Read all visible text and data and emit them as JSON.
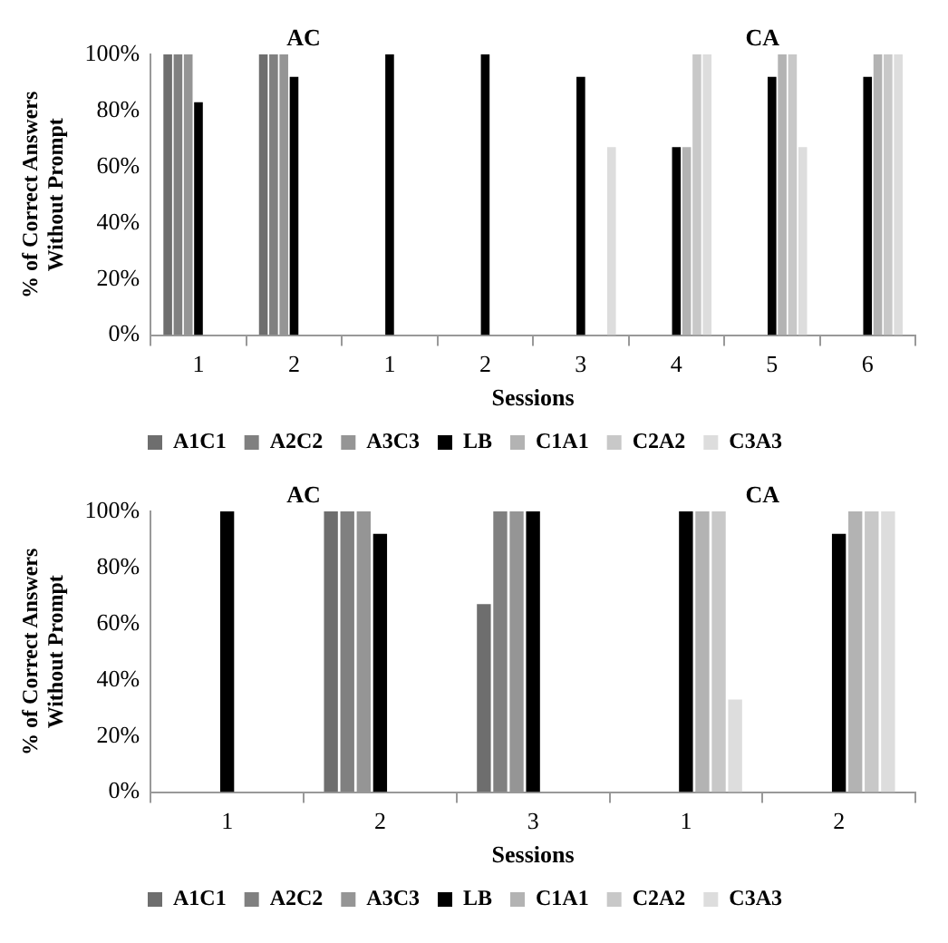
{
  "chart_data": [
    {
      "type": "bar",
      "annotations": [
        "AC",
        "CA"
      ],
      "xlabel": "Sessions",
      "ylabel": "% of Correct Answers Without Prompt",
      "categories": [
        "1",
        "2",
        "1",
        "2",
        "3",
        "4",
        "5",
        "6"
      ],
      "ylim": [
        0,
        100
      ],
      "yticks": [
        {
          "value": 0,
          "label": "0%"
        },
        {
          "value": 20,
          "label": "20%"
        },
        {
          "value": 40,
          "label": "40%"
        },
        {
          "value": 60,
          "label": "60%"
        },
        {
          "value": 80,
          "label": "80%"
        },
        {
          "value": 100,
          "label": "100%"
        }
      ],
      "grid": false,
      "legend": "bottom",
      "series": [
        {
          "name": "A1C1",
          "color": "#6e6e6e",
          "values": [
            100,
            100,
            null,
            null,
            null,
            null,
            null,
            null
          ]
        },
        {
          "name": "A2C2",
          "color": "#808080",
          "values": [
            100,
            100,
            null,
            null,
            null,
            null,
            null,
            null
          ]
        },
        {
          "name": "A3C3",
          "color": "#959595",
          "values": [
            100,
            100,
            null,
            null,
            null,
            null,
            null,
            null
          ]
        },
        {
          "name": "LB",
          "color": "#000000",
          "values": [
            83,
            92,
            100,
            100,
            92,
            67,
            92,
            92
          ]
        },
        {
          "name": "C1A1",
          "color": "#b3b3b3",
          "values": [
            null,
            null,
            null,
            null,
            null,
            67,
            100,
            100
          ]
        },
        {
          "name": "C2A2",
          "color": "#c8c8c8",
          "values": [
            null,
            null,
            null,
            null,
            null,
            100,
            100,
            100
          ]
        },
        {
          "name": "C3A3",
          "color": "#dddddd",
          "values": [
            null,
            null,
            null,
            null,
            67,
            100,
            67,
            100
          ]
        }
      ]
    },
    {
      "type": "bar",
      "annotations": [
        "AC",
        "CA"
      ],
      "xlabel": "Sessions",
      "ylabel": "% of Correct Answers Without Prompt",
      "categories": [
        "1",
        "2",
        "3",
        "1",
        "2"
      ],
      "ylim": [
        0,
        100
      ],
      "yticks": [
        {
          "value": 0,
          "label": "0%"
        },
        {
          "value": 20,
          "label": "20%"
        },
        {
          "value": 40,
          "label": "40%"
        },
        {
          "value": 60,
          "label": "60%"
        },
        {
          "value": 80,
          "label": "80%"
        },
        {
          "value": 100,
          "label": "100%"
        }
      ],
      "grid": false,
      "legend": "bottom",
      "series": [
        {
          "name": "A1C1",
          "color": "#6e6e6e",
          "values": [
            null,
            100,
            67,
            null,
            null
          ]
        },
        {
          "name": "A2C2",
          "color": "#808080",
          "values": [
            null,
            100,
            100,
            null,
            null
          ]
        },
        {
          "name": "A3C3",
          "color": "#959595",
          "values": [
            null,
            100,
            100,
            null,
            null
          ]
        },
        {
          "name": "LB",
          "color": "#000000",
          "values": [
            100,
            92,
            100,
            100,
            92
          ]
        },
        {
          "name": "C1A1",
          "color": "#b3b3b3",
          "values": [
            null,
            null,
            null,
            100,
            100
          ]
        },
        {
          "name": "C2A2",
          "color": "#c8c8c8",
          "values": [
            null,
            null,
            null,
            100,
            100
          ]
        },
        {
          "name": "C3A3",
          "color": "#dddddd",
          "values": [
            null,
            null,
            null,
            33,
            100
          ]
        }
      ]
    }
  ]
}
